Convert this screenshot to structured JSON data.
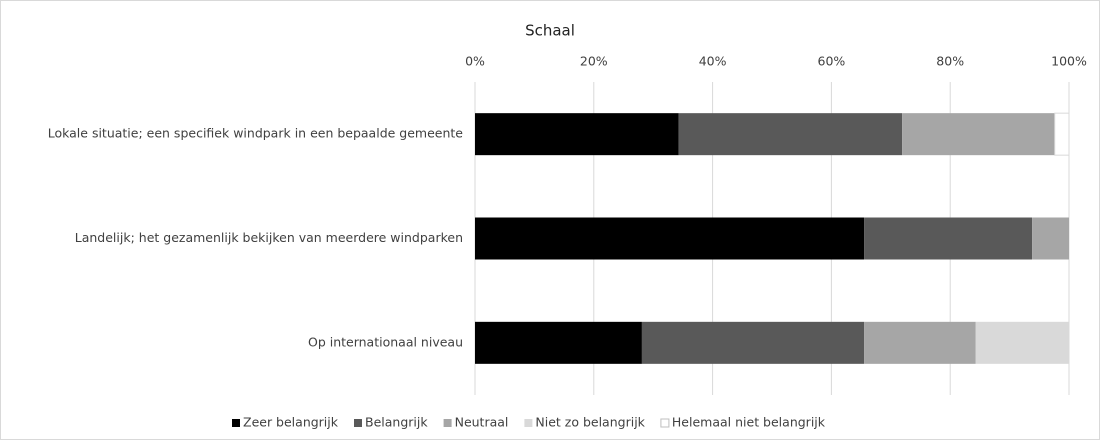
{
  "chart_data": {
    "type": "stacked_bar_horizontal",
    "title": "Schaal",
    "categories": [
      "Lokale situatie; een specifiek windpark in een bepaalde gemeente",
      "Landelijk; het gezamenlijk bekijken van meerdere windparken",
      "Op internationaal niveau"
    ],
    "series": [
      {
        "name": "Zeer belangrijk",
        "color": "#000000",
        "values": [
          34.3,
          65.5,
          28.1
        ]
      },
      {
        "name": "Belangrijk",
        "color": "#595959",
        "values": [
          37.6,
          28.3,
          37.4
        ]
      },
      {
        "name": "Neutraal",
        "color": "#a6a6a6",
        "values": [
          25.7,
          6.2,
          18.8
        ]
      },
      {
        "name": "Niet zo belangrijk",
        "color": "#d9d9d9",
        "values": [
          0,
          0,
          15.7
        ]
      },
      {
        "name": "Helemaal niet belangrijk",
        "color": "#ffffff",
        "values": [
          2.4,
          0,
          0
        ]
      }
    ],
    "xlim": [
      0,
      100
    ],
    "xticks": [
      {
        "value": 0,
        "label": "0%"
      },
      {
        "value": 20,
        "label": "20%"
      },
      {
        "value": 40,
        "label": "40%"
      },
      {
        "value": 60,
        "label": "60%"
      },
      {
        "value": 80,
        "label": "80%"
      },
      {
        "value": 100,
        "label": "100%"
      }
    ],
    "grid": true,
    "legend": "bottom"
  }
}
